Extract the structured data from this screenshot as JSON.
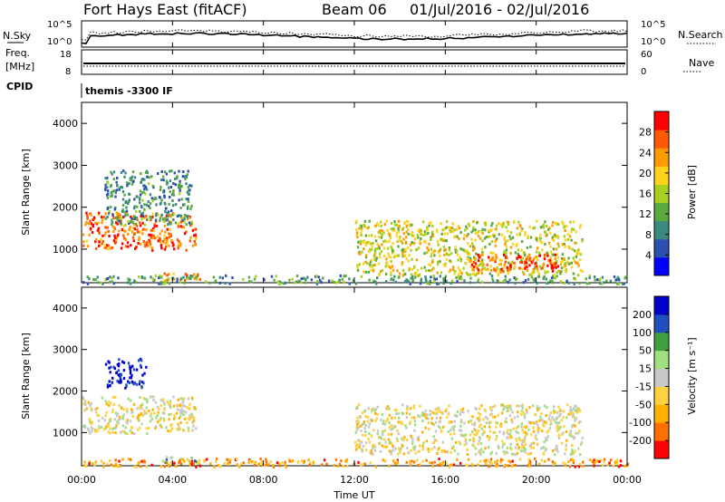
{
  "header": {
    "radar": "Fort Hays East (fitACF)",
    "beam": "Beam 06",
    "dates": "01/Jul/2016 - 02/Jul/2016"
  },
  "top_panels": {
    "nsky_label": "N.Sky",
    "nsky_ticks": [
      "10^5",
      "10^0"
    ],
    "nsearch_label": "N.Search",
    "nsearch_ticks": [
      "10^5",
      "10^0"
    ],
    "freq_label": "Freq.",
    "freq_unit": "[MHz]",
    "freq_ticks": [
      "18",
      "8"
    ],
    "nave_label": "Nave",
    "nave_ticks": [
      "60",
      "0"
    ],
    "cpid_label": "CPID",
    "cpid_text": "themis -3300 IF"
  },
  "chart_data": [
    {
      "type": "heatmap",
      "quantity": "power",
      "ylabel": "Slant Range [km]",
      "ylim": [
        200,
        4500
      ],
      "yticks": [
        "4000",
        "3000",
        "2000",
        "1000"
      ],
      "xlim": [
        0,
        24
      ],
      "colorbar_label": "Power [dB]",
      "colorbar_ticks": [
        "28",
        "24",
        "20",
        "16",
        "12",
        "8",
        "4"
      ],
      "colormap": [
        "#0000ff",
        "#2a50b0",
        "#3a8a80",
        "#5aaa40",
        "#a8d020",
        "#ffd21e",
        "#ff9a00",
        "#ff5a00",
        "#ff0000"
      ],
      "regions": [
        {
          "t": [
            0.0,
            5.0
          ],
          "r": [
            1000,
            1900
          ],
          "level": 0.8
        },
        {
          "t": [
            1.0,
            4.8
          ],
          "r": [
            1600,
            2900
          ],
          "level": 0.3
        },
        {
          "t": [
            3.5,
            5.2
          ],
          "r": [
            250,
            450
          ],
          "level": 0.75
        },
        {
          "t": [
            0.0,
            24.0
          ],
          "r": [
            200,
            400
          ],
          "level": 0.35
        },
        {
          "t": [
            12.0,
            22.0
          ],
          "r": [
            400,
            1700
          ],
          "level": 0.55
        },
        {
          "t": [
            17.0,
            21.0
          ],
          "r": [
            500,
            900
          ],
          "level": 0.85
        }
      ]
    },
    {
      "type": "heatmap",
      "quantity": "velocity",
      "ylabel": "Slant Range [km]",
      "ylim": [
        200,
        4500
      ],
      "yticks": [
        "4000",
        "3000",
        "2000",
        "1000"
      ],
      "xlim": [
        0,
        24
      ],
      "xticks": [
        "00:00",
        "04:00",
        "08:00",
        "12:00",
        "16:00",
        "20:00",
        "00:00"
      ],
      "xlabel": "Time UT",
      "colorbar_label": "Velocity [m s⁻¹]",
      "colorbar_ticks": [
        "200",
        "100",
        "50",
        "15",
        "-15",
        "-50",
        "-100",
        "-200"
      ],
      "colormap": [
        "#ff0000",
        "#ff7000",
        "#ffb000",
        "#ffd040",
        "#c8c8c8",
        "#a0e080",
        "#40a040",
        "#2050c0",
        "#0000cc"
      ],
      "regions": [
        {
          "t": [
            0.0,
            5.0
          ],
          "r": [
            1000,
            1900
          ],
          "level": 0.45
        },
        {
          "t": [
            1.0,
            2.8
          ],
          "r": [
            2100,
            2800
          ],
          "level": 0.95
        },
        {
          "t": [
            3.5,
            5.2
          ],
          "r": [
            250,
            450
          ],
          "level": 0.62
        },
        {
          "t": [
            0.0,
            24.0
          ],
          "r": [
            200,
            400
          ],
          "level": 0.25
        },
        {
          "t": [
            12.0,
            22.0
          ],
          "r": [
            500,
            1700
          ],
          "level": 0.45
        }
      ]
    }
  ]
}
